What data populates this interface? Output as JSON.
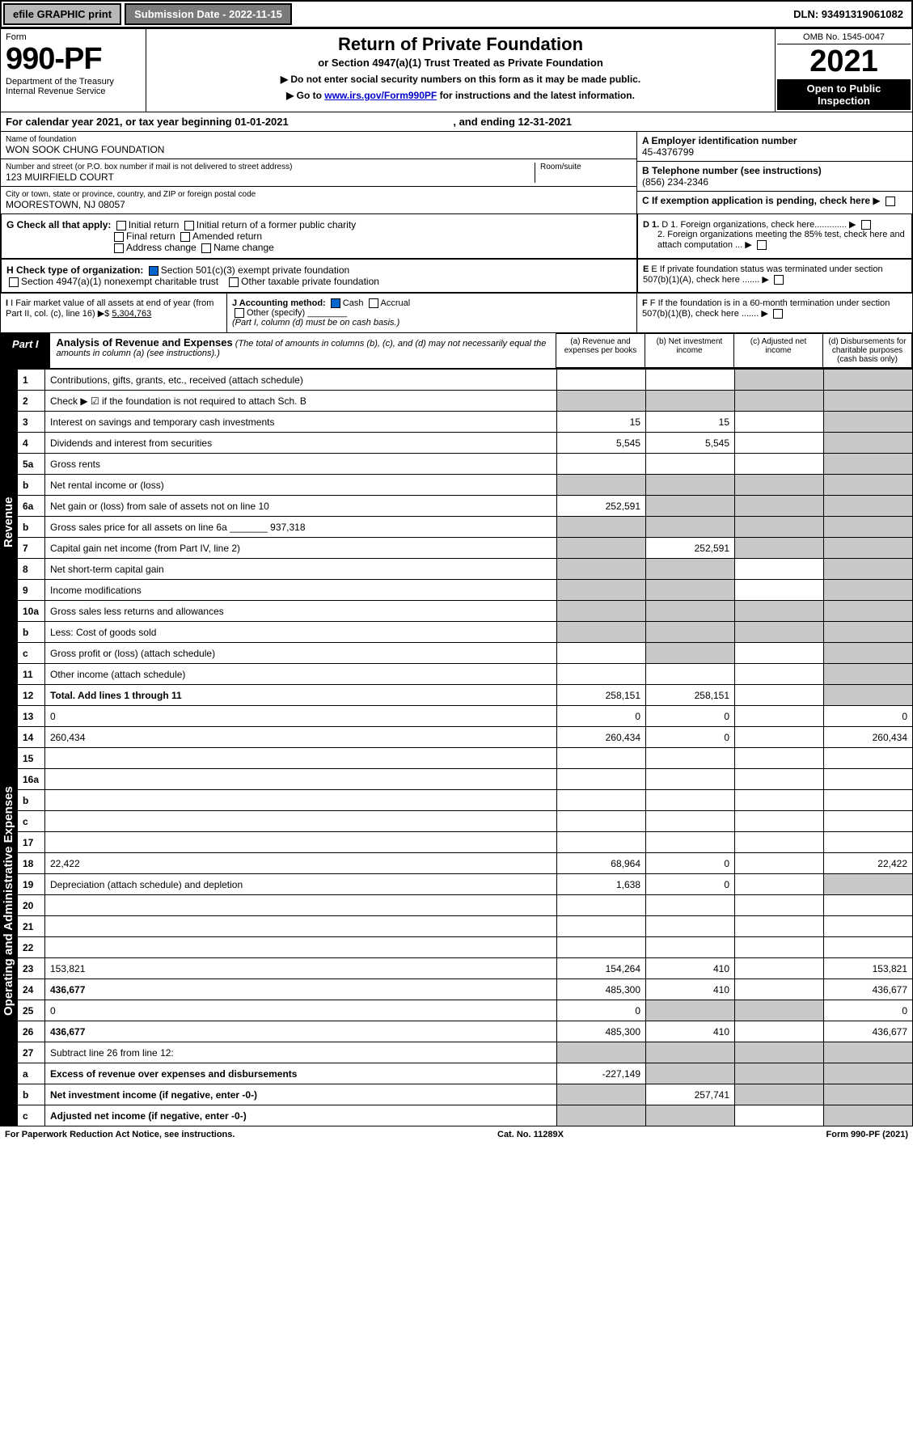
{
  "topbar": {
    "efile": "efile GRAPHIC print",
    "submission": "Submission Date - 2022-11-15",
    "dln": "DLN: 93491319061082"
  },
  "header": {
    "form_label": "Form",
    "form_num": "990-PF",
    "dept": "Department of the Treasury",
    "irs": "Internal Revenue Service",
    "title": "Return of Private Foundation",
    "subtitle": "or Section 4947(a)(1) Trust Treated as Private Foundation",
    "note1": "▶ Do not enter social security numbers on this form as it may be made public.",
    "note2_pre": "▶ Go to ",
    "note2_link": "www.irs.gov/Form990PF",
    "note2_post": " for instructions and the latest information.",
    "omb": "OMB No. 1545-0047",
    "year": "2021",
    "open": "Open to Public Inspection"
  },
  "calendar": {
    "text_pre": "For calendar year 2021, or tax year beginning ",
    "begin": "01-01-2021",
    "mid": " , and ending ",
    "end": "12-31-2021"
  },
  "info": {
    "name_lbl": "Name of foundation",
    "name": "WON SOOK CHUNG FOUNDATION",
    "addr_lbl": "Number and street (or P.O. box number if mail is not delivered to street address)",
    "addr": "123 MUIRFIELD COURT",
    "room_lbl": "Room/suite",
    "city_lbl": "City or town, state or province, country, and ZIP or foreign postal code",
    "city": "MOORESTOWN, NJ  08057",
    "a_lbl": "A Employer identification number",
    "a_val": "45-4376799",
    "b_lbl": "B Telephone number (see instructions)",
    "b_val": "(856) 234-2346",
    "c_lbl": "C If exemption application is pending, check here",
    "d1": "D 1. Foreign organizations, check here.............",
    "d2": "2. Foreign organizations meeting the 85% test, check here and attach computation ...",
    "e": "E If private foundation status was terminated under section 507(b)(1)(A), check here .......",
    "f": "F If the foundation is in a 60-month termination under section 507(b)(1)(B), check here .......",
    "g_lbl": "G Check all that apply:",
    "g_opts": [
      "Initial return",
      "Initial return of a former public charity",
      "Final return",
      "Amended return",
      "Address change",
      "Name change"
    ],
    "h_lbl": "H Check type of organization:",
    "h_opt1": "Section 501(c)(3) exempt private foundation",
    "h_opt2": "Section 4947(a)(1) nonexempt charitable trust",
    "h_opt3": "Other taxable private foundation",
    "i_lbl": "I Fair market value of all assets at end of year (from Part II, col. (c), line 16) ▶$",
    "i_val": "5,304,763",
    "j_lbl": "J Accounting method:",
    "j_cash": "Cash",
    "j_accrual": "Accrual",
    "j_other": "Other (specify)",
    "j_note": "(Part I, column (d) must be on cash basis.)"
  },
  "part1": {
    "tab": "Part I",
    "title": "Analysis of Revenue and Expenses",
    "note": "(The total of amounts in columns (b), (c), and (d) may not necessarily equal the amounts in column (a) (see instructions).)",
    "cols": {
      "a": "(a) Revenue and expenses per books",
      "b": "(b) Net investment income",
      "c": "(c) Adjusted net income",
      "d": "(d) Disbursements for charitable purposes (cash basis only)"
    }
  },
  "side": {
    "revenue": "Revenue",
    "expenses": "Operating and Administrative Expenses"
  },
  "rows": [
    {
      "n": "1",
      "d": "Contributions, gifts, grants, etc., received (attach schedule)",
      "a": "",
      "b": "",
      "c_grey": true,
      "d_grey": true
    },
    {
      "n": "2",
      "d": "Check ▶ ☑ if the foundation is not required to attach Sch. B",
      "a_grey": true,
      "b_grey": true,
      "c_grey": true,
      "d_grey": true
    },
    {
      "n": "3",
      "d": "Interest on savings and temporary cash investments",
      "a": "15",
      "b": "15",
      "c": "",
      "d_grey": true
    },
    {
      "n": "4",
      "d": "Dividends and interest from securities",
      "a": "5,545",
      "b": "5,545",
      "c": "",
      "d_grey": true
    },
    {
      "n": "5a",
      "d": "Gross rents",
      "a": "",
      "b": "",
      "c": "",
      "d_grey": true
    },
    {
      "n": "b",
      "d": "Net rental income or (loss)",
      "a_grey": true,
      "b_grey": true,
      "c_grey": true,
      "d_grey": true
    },
    {
      "n": "6a",
      "d": "Net gain or (loss) from sale of assets not on line 10",
      "a": "252,591",
      "b_grey": true,
      "c_grey": true,
      "d_grey": true
    },
    {
      "n": "b",
      "d": "Gross sales price for all assets on line 6a _______ 937,318",
      "a_grey": true,
      "b_grey": true,
      "c_grey": true,
      "d_grey": true
    },
    {
      "n": "7",
      "d": "Capital gain net income (from Part IV, line 2)",
      "a_grey": true,
      "b": "252,591",
      "c_grey": true,
      "d_grey": true
    },
    {
      "n": "8",
      "d": "Net short-term capital gain",
      "a_grey": true,
      "b_grey": true,
      "c": "",
      "d_grey": true
    },
    {
      "n": "9",
      "d": "Income modifications",
      "a_grey": true,
      "b_grey": true,
      "c": "",
      "d_grey": true
    },
    {
      "n": "10a",
      "d": "Gross sales less returns and allowances",
      "a_grey": true,
      "b_grey": true,
      "c_grey": true,
      "d_grey": true
    },
    {
      "n": "b",
      "d": "Less: Cost of goods sold",
      "a_grey": true,
      "b_grey": true,
      "c_grey": true,
      "d_grey": true
    },
    {
      "n": "c",
      "d": "Gross profit or (loss) (attach schedule)",
      "a": "",
      "b_grey": true,
      "c": "",
      "d_grey": true
    },
    {
      "n": "11",
      "d": "Other income (attach schedule)",
      "a": "",
      "b": "",
      "c": "",
      "d_grey": true
    },
    {
      "n": "12",
      "d": "Total. Add lines 1 through 11",
      "a": "258,151",
      "b": "258,151",
      "c": "",
      "d_grey": true,
      "bold": true
    },
    {
      "n": "13",
      "d": "0",
      "a": "0",
      "b": "0",
      "c": ""
    },
    {
      "n": "14",
      "d": "260,434",
      "a": "260,434",
      "b": "0",
      "c": ""
    },
    {
      "n": "15",
      "d": "",
      "a": "",
      "b": "",
      "c": ""
    },
    {
      "n": "16a",
      "d": "",
      "a": "",
      "b": "",
      "c": ""
    },
    {
      "n": "b",
      "d": "",
      "a": "",
      "b": "",
      "c": ""
    },
    {
      "n": "c",
      "d": "",
      "a": "",
      "b": "",
      "c": ""
    },
    {
      "n": "17",
      "d": "",
      "a": "",
      "b": "",
      "c": ""
    },
    {
      "n": "18",
      "d": "22,422",
      "a": "68,964",
      "b": "0",
      "c": ""
    },
    {
      "n": "19",
      "d": "Depreciation (attach schedule) and depletion",
      "a": "1,638",
      "b": "0",
      "c": "",
      "d_grey": true
    },
    {
      "n": "20",
      "d": "",
      "a": "",
      "b": "",
      "c": ""
    },
    {
      "n": "21",
      "d": "",
      "a": "",
      "b": "",
      "c": ""
    },
    {
      "n": "22",
      "d": "",
      "a": "",
      "b": "",
      "c": ""
    },
    {
      "n": "23",
      "d": "153,821",
      "a": "154,264",
      "b": "410",
      "c": ""
    },
    {
      "n": "24",
      "d": "436,677",
      "a": "485,300",
      "b": "410",
      "c": "",
      "bold": true
    },
    {
      "n": "25",
      "d": "0",
      "a": "0",
      "b_grey": true,
      "c_grey": true
    },
    {
      "n": "26",
      "d": "436,677",
      "a": "485,300",
      "b": "410",
      "c": "",
      "bold": true
    },
    {
      "n": "27",
      "d": "Subtract line 26 from line 12:",
      "a_grey": true,
      "b_grey": true,
      "c_grey": true,
      "d_grey": true
    },
    {
      "n": "a",
      "d": "Excess of revenue over expenses and disbursements",
      "a": "-227,149",
      "b_grey": true,
      "c_grey": true,
      "d_grey": true,
      "bold": true
    },
    {
      "n": "b",
      "d": "Net investment income (if negative, enter -0-)",
      "a_grey": true,
      "b": "257,741",
      "c_grey": true,
      "d_grey": true,
      "bold": true
    },
    {
      "n": "c",
      "d": "Adjusted net income (if negative, enter -0-)",
      "a_grey": true,
      "b_grey": true,
      "c": "",
      "d_grey": true,
      "bold": true
    }
  ],
  "footer": {
    "left": "For Paperwork Reduction Act Notice, see instructions.",
    "mid": "Cat. No. 11289X",
    "right": "Form 990-PF (2021)"
  },
  "colors": {
    "grey_cell": "#c8c8c8",
    "black": "#000000",
    "link": "#0000cc",
    "btn_grey": "#b8b8b8",
    "btn_dark": "#7a7a7a"
  }
}
